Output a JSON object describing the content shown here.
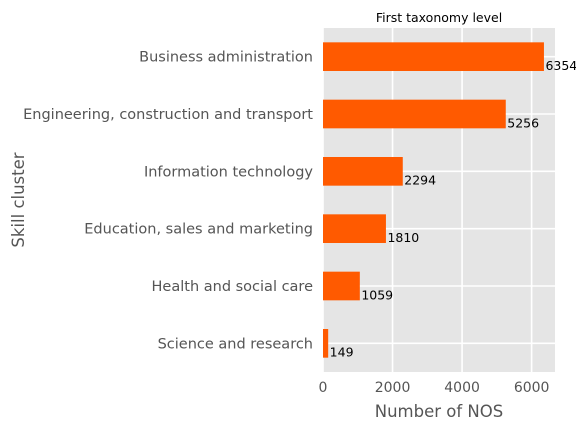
{
  "chart_data": {
    "type": "bar",
    "orientation": "horizontal",
    "title": "First taxonomy level",
    "xlabel": "Number of NOS",
    "ylabel": "Skill cluster",
    "categories": [
      "Business administration",
      "Engineering, construction and transport",
      "Information technology",
      "Education, sales and marketing",
      "Health and social care",
      "Science and research"
    ],
    "values": [
      6354,
      5256,
      2294,
      1810,
      1059,
      149
    ],
    "data_labels": [
      "6354",
      "5256",
      "2294",
      "1810",
      "1059",
      "149"
    ],
    "xticks": [
      0,
      2000,
      4000,
      6000
    ],
    "xtick_labels": [
      "0",
      "2000",
      "4000",
      "6000"
    ],
    "xlim": [
      0,
      6672
    ],
    "grid": true,
    "bar_color": "#ff5a00",
    "plot_background": "#e5e5e5",
    "grid_color": "#ffffff"
  }
}
